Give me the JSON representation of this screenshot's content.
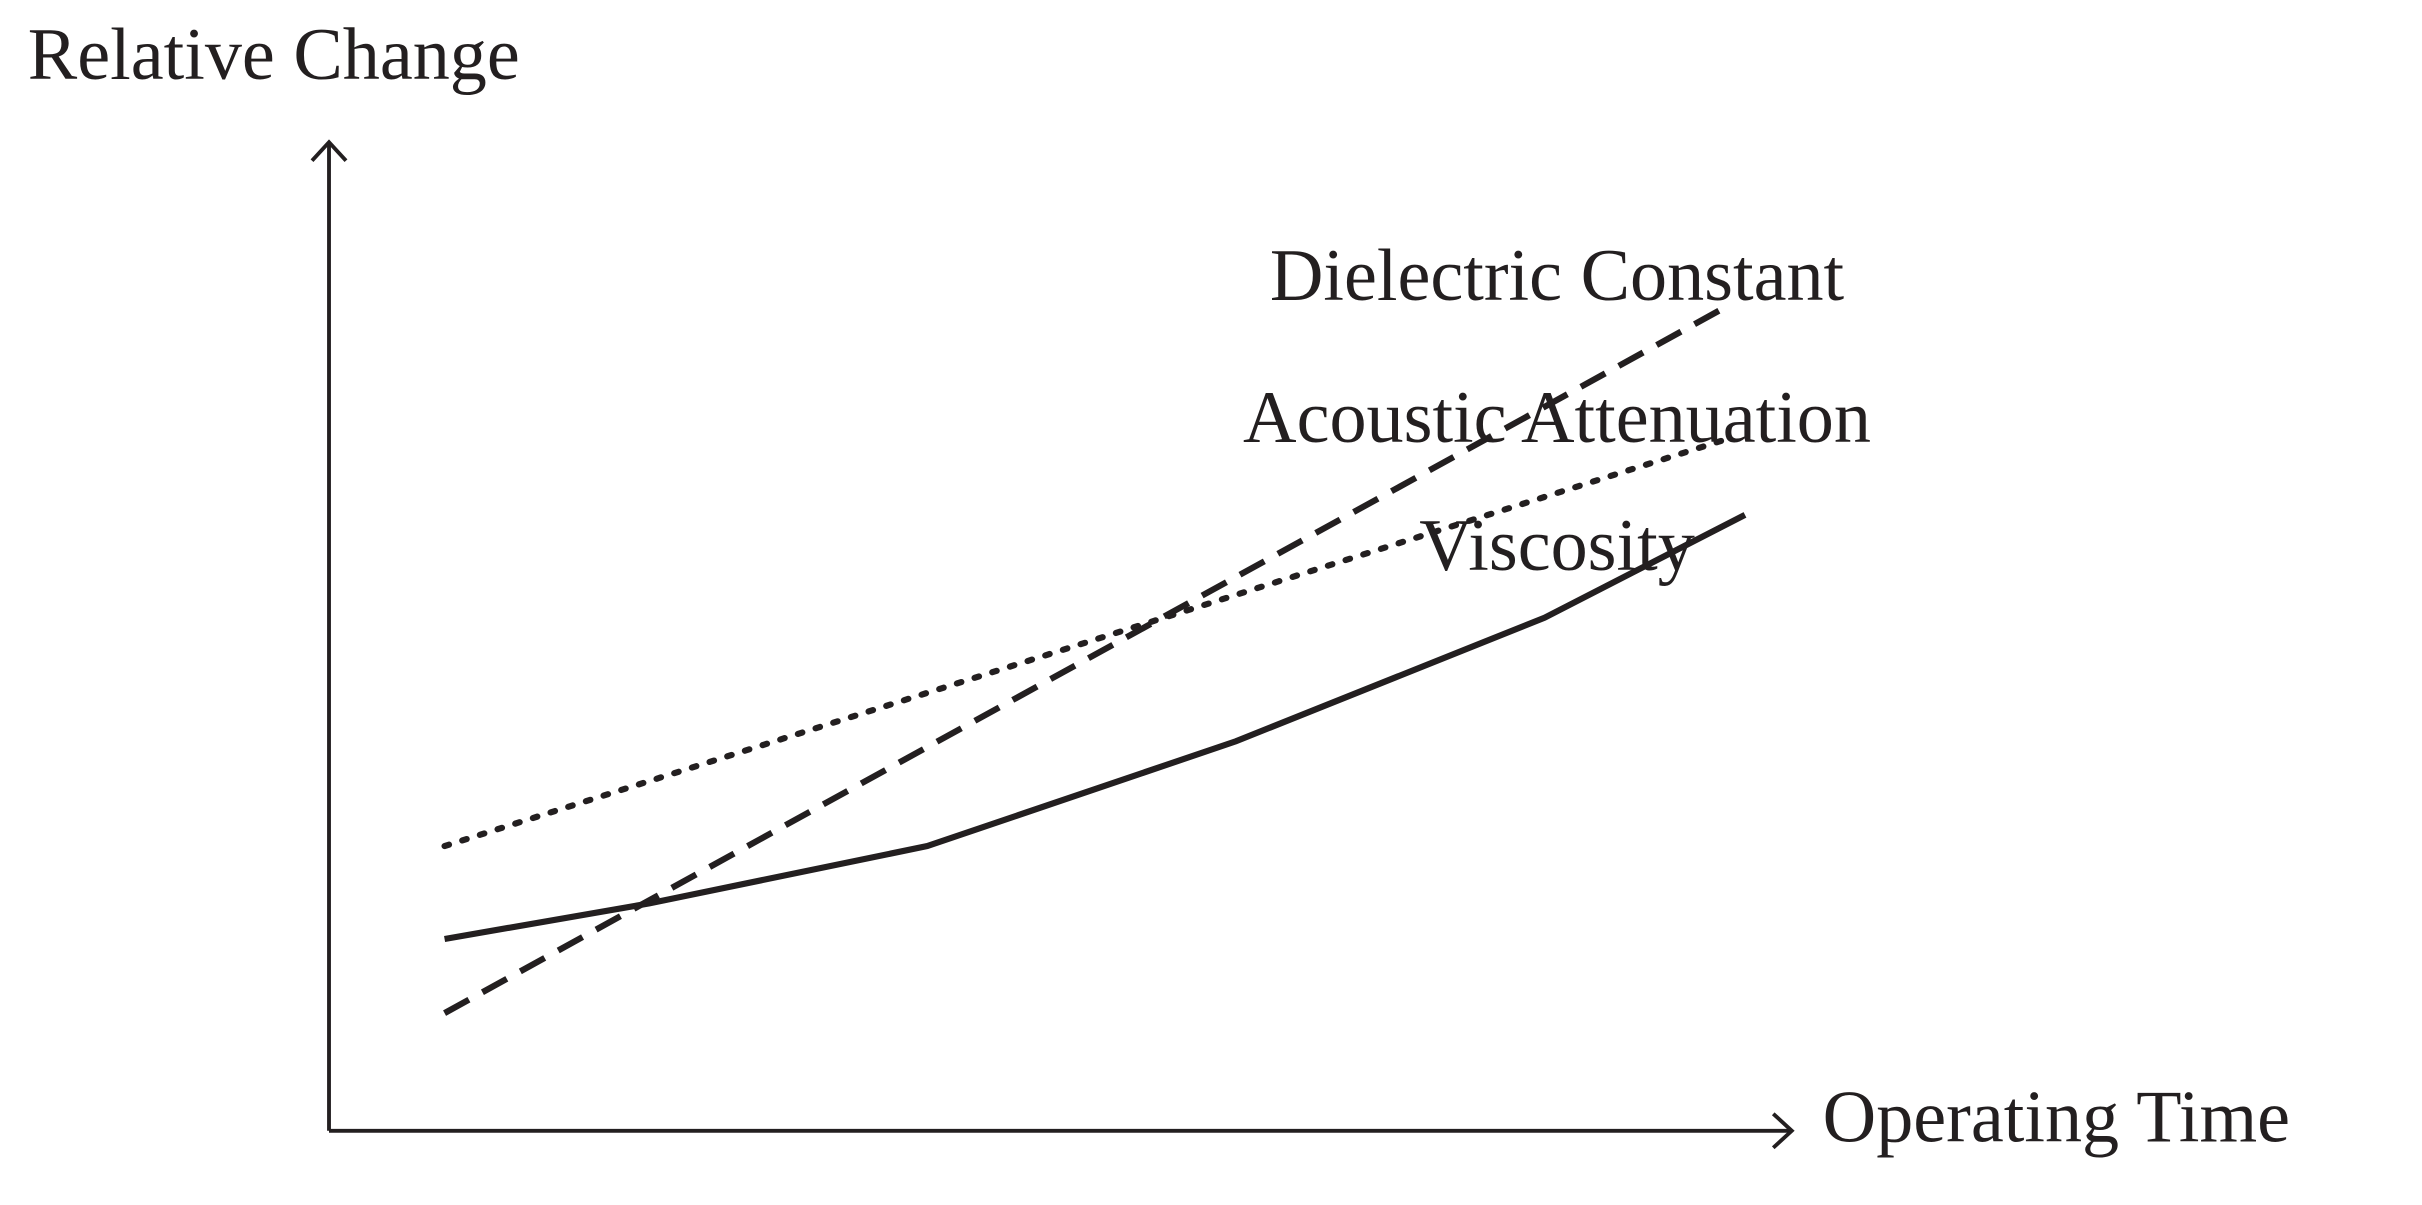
{
  "chart_data": {
    "type": "line",
    "y_label": "Relative Change",
    "x_label": "Operating Time",
    "xlim": [
      0,
      100
    ],
    "ylim": [
      0,
      100
    ],
    "series": [
      {
        "name": "Dielectric Constant",
        "color": "#231f20",
        "style": "dashed",
        "x": [
          7.9,
          95.2
        ],
        "values": [
          11.9,
          83.1
        ]
      },
      {
        "name": "Acoustic Attenuation",
        "color": "#231f20",
        "style": "dotted",
        "x": [
          7.9,
          95.2
        ],
        "values": [
          28.8,
          69.8
        ]
      },
      {
        "name": "Viscosity",
        "color": "#231f20",
        "style": "solid",
        "x": [
          7.9,
          21.9,
          40.9,
          62.0,
          83.1,
          96.8
        ],
        "values": [
          19.4,
          23.0,
          28.8,
          39.4,
          51.9,
          62.3
        ]
      }
    ]
  }
}
